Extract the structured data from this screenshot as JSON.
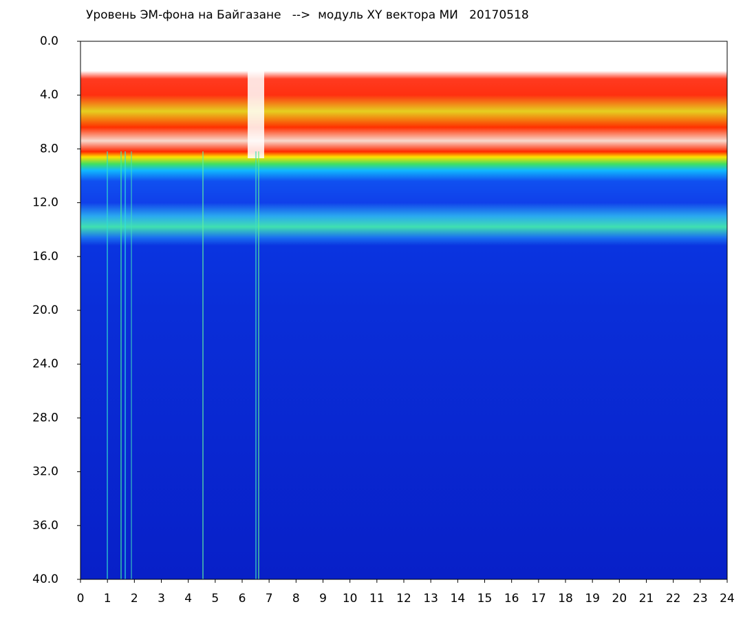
{
  "chart_data": {
    "type": "heatmap",
    "title": "Уровень ЭМ-фона на Байгазане   -->  модуль XY вектора МИ   20170518",
    "xlim": [
      0,
      24
    ],
    "xticks": [
      0,
      1,
      2,
      3,
      4,
      5,
      6,
      7,
      8,
      9,
      10,
      11,
      12,
      13,
      14,
      15,
      16,
      17,
      18,
      19,
      20,
      21,
      22,
      23,
      24
    ],
    "ylim": [
      40,
      0
    ],
    "yticks": [
      {
        "value": 0,
        "label": "0.0"
      },
      {
        "value": 4,
        "label": "4.0"
      },
      {
        "value": 8,
        "label": "8.0"
      },
      {
        "value": 12,
        "label": "12.0"
      },
      {
        "value": 16,
        "label": "16.0"
      },
      {
        "value": 20,
        "label": "20.0"
      },
      {
        "value": 24,
        "label": "24.0"
      },
      {
        "value": 28,
        "label": "28.0"
      },
      {
        "value": 32,
        "label": "32.0"
      },
      {
        "value": 36,
        "label": "36.0"
      },
      {
        "value": 40,
        "label": "40.0"
      }
    ],
    "grid": false
  }
}
